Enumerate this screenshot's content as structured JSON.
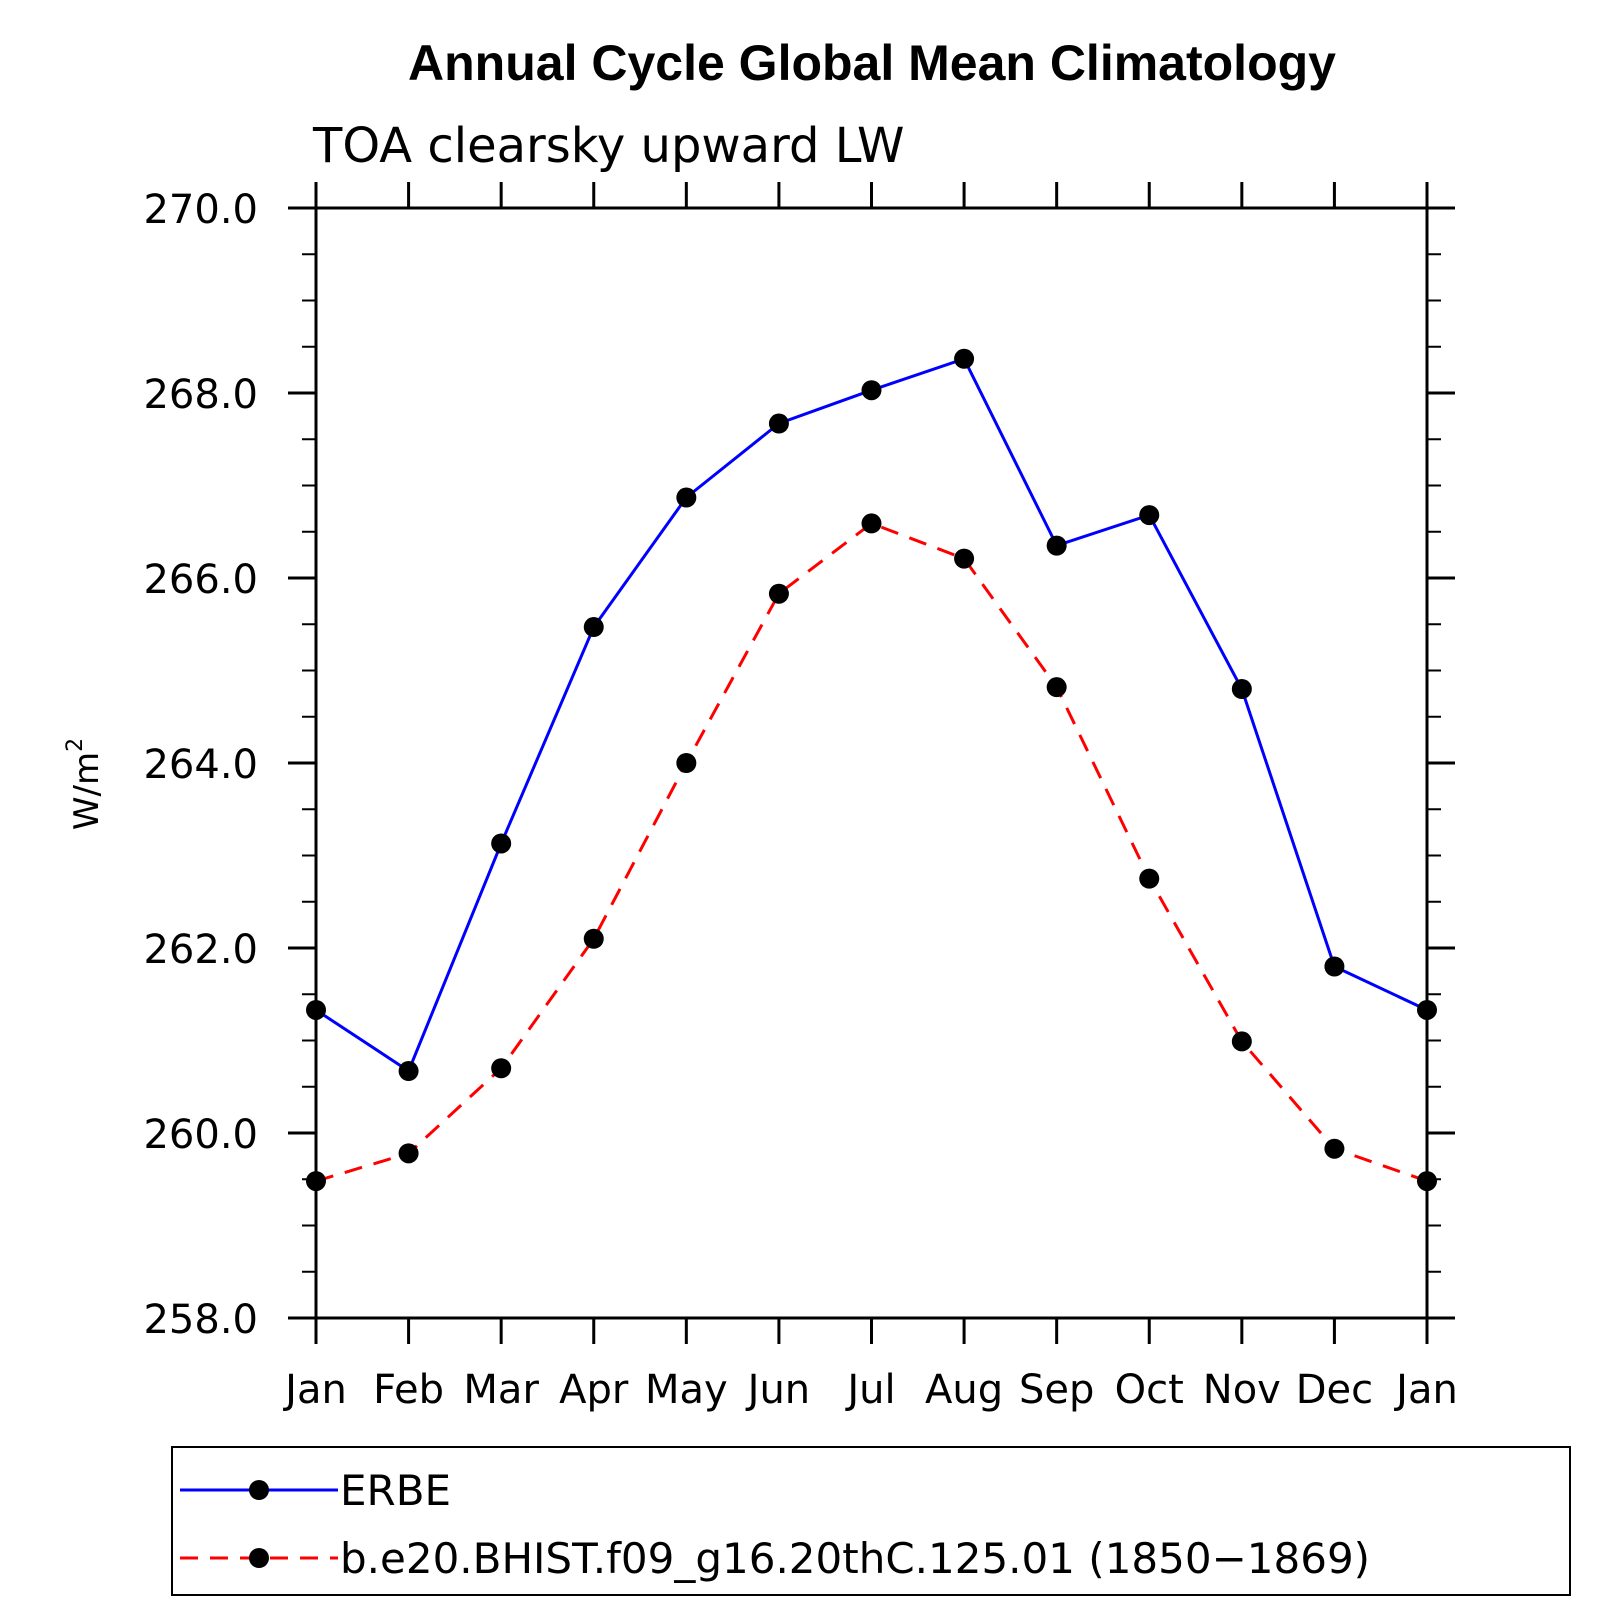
{
  "chart_data": {
    "type": "line",
    "title": "Annual Cycle Global Mean Climatology",
    "subtitle": "TOA clearsky upward LW",
    "ylabel": "W/m",
    "ylabel_sup": "2",
    "xlabel": "",
    "categories": [
      "Jan",
      "Feb",
      "Mar",
      "Apr",
      "May",
      "Jun",
      "Jul",
      "Aug",
      "Sep",
      "Oct",
      "Nov",
      "Dec",
      "Jan"
    ],
    "ylim": [
      258.0,
      270.0
    ],
    "yticks": [
      258.0,
      260.0,
      262.0,
      264.0,
      266.0,
      268.0,
      270.0
    ],
    "ytick_labels": [
      "258.0",
      "260.0",
      "262.0",
      "264.0",
      "266.0",
      "268.0",
      "270.0"
    ],
    "grid": false,
    "legend_position": "bottom",
    "series": [
      {
        "name": "ERBE",
        "color": "#0000ff",
        "style": "solid",
        "values": [
          261.33,
          260.67,
          263.13,
          265.47,
          266.87,
          267.67,
          268.03,
          268.37,
          266.35,
          266.68,
          264.8,
          261.8,
          261.33
        ]
      },
      {
        "name": "b.e20.BHIST.f09_g16.20thC.125.01 (1850−1869)",
        "color": "#ff0000",
        "style": "dashed",
        "values": [
          259.48,
          259.78,
          260.7,
          262.1,
          264.0,
          265.83,
          266.59,
          266.21,
          264.82,
          262.75,
          260.99,
          259.83,
          259.48
        ]
      }
    ]
  }
}
